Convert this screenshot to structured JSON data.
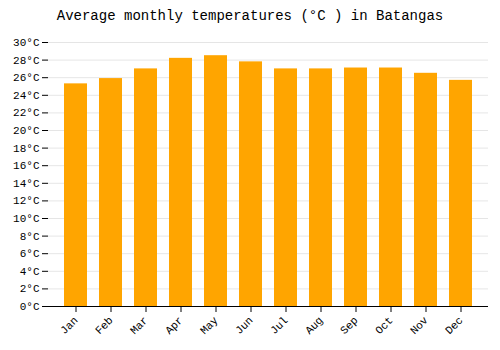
{
  "chart_data": {
    "type": "bar",
    "title": "Average monthly temperatures (°C ) in Batangas",
    "categories": [
      "Jan",
      "Feb",
      "Mar",
      "Apr",
      "May",
      "Jun",
      "Jul",
      "Aug",
      "Sep",
      "Oct",
      "Nov",
      "Dec"
    ],
    "values": [
      25.3,
      25.9,
      27.0,
      28.2,
      28.5,
      27.8,
      27.0,
      27.0,
      27.1,
      27.1,
      26.5,
      25.7
    ],
    "color": "#FFA500",
    "ylim": [
      0,
      30
    ],
    "yticks": [
      {
        "value": 0,
        "label": "0°C"
      },
      {
        "value": 2,
        "label": "2°C"
      },
      {
        "value": 4,
        "label": "4°C"
      },
      {
        "value": 6,
        "label": "6°C"
      },
      {
        "value": 8,
        "label": "8°C"
      },
      {
        "value": 10,
        "label": "10°C"
      },
      {
        "value": 12,
        "label": "12°C"
      },
      {
        "value": 14,
        "label": "14°C"
      },
      {
        "value": 16,
        "label": "16°C"
      },
      {
        "value": 18,
        "label": "18°C"
      },
      {
        "value": 20,
        "label": "20°C"
      },
      {
        "value": 22,
        "label": "22°C"
      },
      {
        "value": 24,
        "label": "24°C"
      },
      {
        "value": 26,
        "label": "26°C"
      },
      {
        "value": 28,
        "label": "28°C"
      },
      {
        "value": 30,
        "label": "30°C"
      }
    ],
    "grid": true
  }
}
